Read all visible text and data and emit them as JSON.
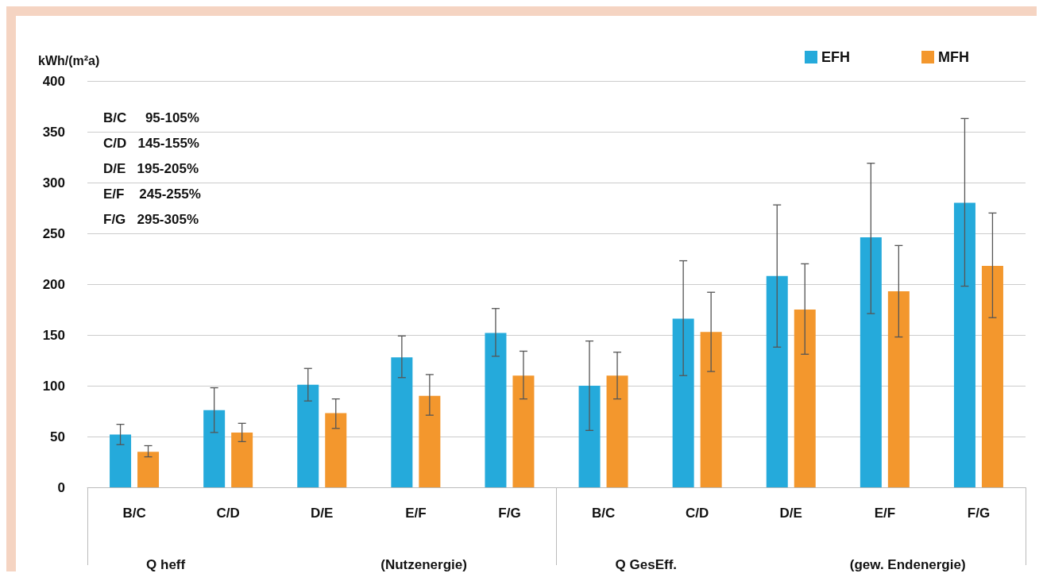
{
  "chart_data": {
    "type": "bar",
    "ylabel": "kWh/(m²a)",
    "categories": [
      "B/C",
      "C/D",
      "D/E",
      "E/F",
      "F/G",
      "B/C",
      "C/D",
      "D/E",
      "E/F",
      "F/G"
    ],
    "series": [
      {
        "name": "EFH",
        "color": "#25aadb",
        "values": [
          52,
          76,
          101,
          128,
          152,
          100,
          166,
          208,
          246,
          280
        ],
        "errors": [
          [
            42,
            62
          ],
          [
            54,
            98
          ],
          [
            85,
            117
          ],
          [
            108,
            149
          ],
          [
            129,
            176
          ],
          [
            56,
            144
          ],
          [
            110,
            223
          ],
          [
            138,
            278
          ],
          [
            171,
            319
          ],
          [
            198,
            363
          ]
        ]
      },
      {
        "name": "MFH",
        "color": "#f3972d",
        "values": [
          35,
          54,
          73,
          90,
          110,
          110,
          153,
          175,
          193,
          218
        ],
        "errors": [
          [
            30,
            41
          ],
          [
            45,
            63
          ],
          [
            58,
            87
          ],
          [
            71,
            111
          ],
          [
            87,
            134
          ],
          [
            87,
            133
          ],
          [
            114,
            192
          ],
          [
            131,
            220
          ],
          [
            148,
            238
          ],
          [
            167,
            270
          ]
        ]
      }
    ],
    "ylim": [
      0,
      400
    ],
    "yticks": [
      0,
      50,
      100,
      150,
      200,
      250,
      300,
      350,
      400
    ],
    "grid": "y",
    "legend": "top right",
    "annotations": [
      "B/C     95-105%",
      "C/D   145-155%",
      "D/E   195-205%",
      "E/F    245-255%",
      "F/G   295-305%",
      "Q heff",
      "(Nutzenergie)",
      "Q GesEff.",
      "(gew. Endenergie)"
    ]
  }
}
